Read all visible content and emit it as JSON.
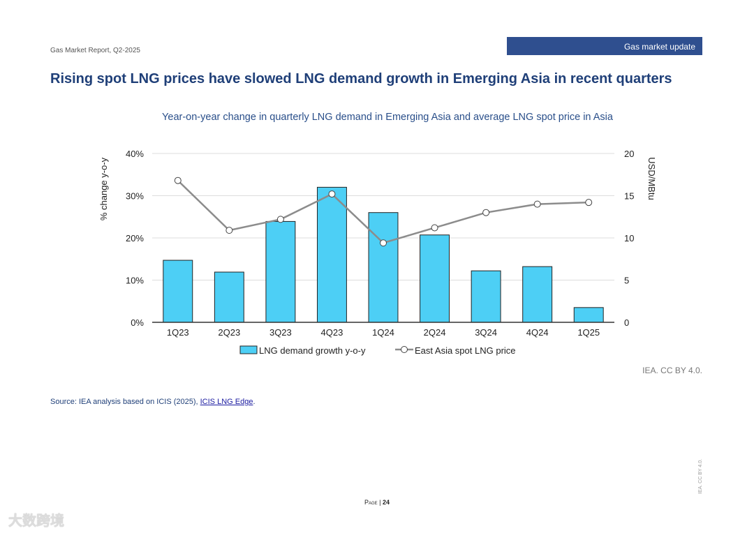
{
  "header": {
    "report": "Gas Market Report, Q2-2025",
    "section": "Gas market update"
  },
  "title": "Rising spot LNG prices have slowed LNG demand growth in Emerging Asia in recent quarters",
  "chart_data": {
    "type": "bar+line",
    "title": "Year-on-year change in quarterly LNG demand in Emerging Asia and average LNG spot price in Asia",
    "categories": [
      "1Q23",
      "2Q23",
      "3Q23",
      "4Q23",
      "1Q24",
      "2Q24",
      "3Q24",
      "4Q24",
      "1Q25"
    ],
    "ylabel": "% change y-o-y",
    "y2label": "USD/MBtu",
    "ylim": [
      0,
      40
    ],
    "y2lim": [
      0,
      20
    ],
    "yticks": [
      "0%",
      "10%",
      "20%",
      "30%",
      "40%"
    ],
    "y2ticks": [
      "0",
      "5",
      "10",
      "15",
      "20"
    ],
    "grid": true,
    "legend": "bottom",
    "series": [
      {
        "name": "LNG demand growth y-o-y",
        "type": "bar",
        "axis": "left",
        "color": "#4dcff5",
        "values": [
          14.7,
          11.9,
          23.9,
          32.0,
          26.0,
          20.7,
          12.2,
          13.2,
          3.5
        ]
      },
      {
        "name": "East Asia spot LNG price",
        "type": "line",
        "axis": "right",
        "color": "#8c8c8c",
        "values": [
          16.8,
          10.9,
          12.2,
          15.2,
          9.4,
          11.2,
          13.0,
          14.0,
          14.2
        ]
      }
    ]
  },
  "credit": "IEA. CC BY 4.0.",
  "source": {
    "text": "Source: IEA analysis based on ICIS (2025), ",
    "link": "ICIS LNG Edge",
    "end": "."
  },
  "footer": {
    "page_label": "Page",
    "sep": " | ",
    "page": "24",
    "vertical": "IEA. CC BY 4.0.",
    "watermark": "大数跨境"
  }
}
